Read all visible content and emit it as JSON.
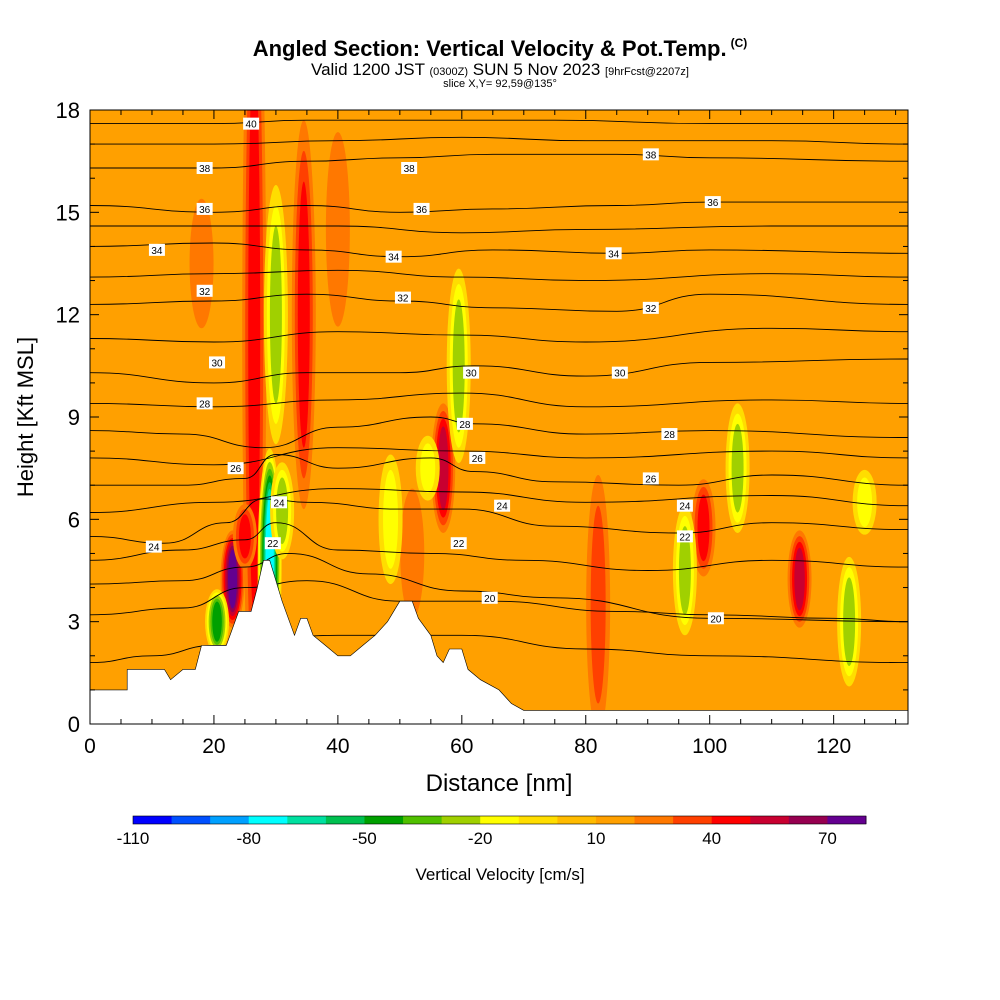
{
  "header": {
    "title": "Angled Section: Vertical Velocity & Pot.Temp.",
    "title_units": "(C)",
    "valid_prefix": "Valid 1200 JST",
    "valid_zulu": "(0300Z)",
    "valid_date": "SUN 5 Nov 2023",
    "forecast": "[9hrFcst@2207z]",
    "slice": "slice X,Y= 92,59@135°"
  },
  "chart_data": {
    "type": "heatmap",
    "xlabel": "Distance [nm]",
    "ylabel": "Height [Kft MSL]",
    "xlim": [
      0,
      132
    ],
    "ylim": [
      0,
      18
    ],
    "x_ticks": [
      0,
      20,
      40,
      60,
      80,
      100,
      120
    ],
    "y_ticks": [
      0,
      3,
      6,
      9,
      12,
      15,
      18
    ],
    "colorbar": {
      "label": "Vertical Velocity [cm/s]",
      "min": -110,
      "max": 80,
      "step": 10,
      "tick_values": [
        -110,
        -80,
        -50,
        -20,
        10,
        40,
        70
      ],
      "colors": [
        "#0000ff",
        "#0050ff",
        "#00a0ff",
        "#00ffff",
        "#00e0a0",
        "#00c050",
        "#00a000",
        "#50c000",
        "#a0d000",
        "#ffff00",
        "#ffdd00",
        "#ffbb00",
        "#ffa000",
        "#ff7800",
        "#ff4000",
        "#ff0000",
        "#c80030",
        "#960050",
        "#640090"
      ]
    },
    "background_w": 10,
    "updrafts": [
      {
        "x": 26.5,
        "y0": 5.0,
        "y1": 18.0,
        "w": 48
      },
      {
        "x": 34.5,
        "y0": 9.0,
        "y1": 15.0,
        "w": 46
      },
      {
        "x": 57.0,
        "y0": 6.5,
        "y1": 8.5,
        "w": 50
      },
      {
        "x": 99.0,
        "y0": 5.0,
        "y1": 6.5,
        "w": 45
      },
      {
        "x": 114.5,
        "y0": 3.5,
        "y1": 5.0,
        "w": 52
      },
      {
        "x": 82.0,
        "y0": 1.5,
        "y1": 5.5,
        "w": 34
      },
      {
        "x": 23.0,
        "y0": 3.5,
        "y1": 5.0,
        "w": 72
      },
      {
        "x": 25.0,
        "y0": 5.0,
        "y1": 6.0,
        "w": 48
      },
      {
        "x": 52.0,
        "y0": 4.0,
        "y1": 6.0,
        "w": 28
      },
      {
        "x": 40.0,
        "y0": 13.0,
        "y1": 16.0,
        "w": 28
      },
      {
        "x": 18.0,
        "y0": 12.5,
        "y1": 14.5,
        "w": 22
      }
    ],
    "downdrafts": [
      {
        "x": 30.0,
        "y0": 10.0,
        "y1": 14.0,
        "w": -35
      },
      {
        "x": 59.5,
        "y0": 9.0,
        "y1": 12.0,
        "w": -32
      },
      {
        "x": 104.5,
        "y0": 6.5,
        "y1": 8.5,
        "w": -32
      },
      {
        "x": 54.5,
        "y0": 7.0,
        "y1": 8.0,
        "w": -28
      },
      {
        "x": 48.5,
        "y0": 5.0,
        "y1": 7.0,
        "w": -28
      },
      {
        "x": 96.0,
        "y0": 3.5,
        "y1": 5.5,
        "w": -30
      },
      {
        "x": 122.5,
        "y0": 2.0,
        "y1": 4.0,
        "w": -30
      },
      {
        "x": 125.0,
        "y0": 6.0,
        "y1": 7.0,
        "w": -25
      },
      {
        "x": 20.5,
        "y0": 2.5,
        "y1": 3.5,
        "w": -55
      },
      {
        "x": 29.0,
        "y0": 3.0,
        "y1": 6.5,
        "w": -85
      },
      {
        "x": 31.0,
        "y0": 5.5,
        "y1": 7.0,
        "w": -35
      }
    ],
    "terrain": [
      [
        0,
        1.0
      ],
      [
        5,
        1.0
      ],
      [
        6,
        1.0
      ],
      [
        6,
        1.6
      ],
      [
        12,
        1.6
      ],
      [
        13,
        1.3
      ],
      [
        15,
        1.6
      ],
      [
        17,
        1.6
      ],
      [
        18,
        2.3
      ],
      [
        22,
        2.3
      ],
      [
        23,
        2.8
      ],
      [
        24,
        3.3
      ],
      [
        26,
        3.3
      ],
      [
        27,
        4.0
      ],
      [
        28,
        4.8
      ],
      [
        29,
        4.8
      ],
      [
        30,
        4.2
      ],
      [
        31,
        3.6
      ],
      [
        32,
        3.1
      ],
      [
        33,
        2.6
      ],
      [
        34,
        3.1
      ],
      [
        35,
        3.1
      ],
      [
        36,
        2.6
      ],
      [
        38,
        2.3
      ],
      [
        40,
        2.0
      ],
      [
        42,
        2.0
      ],
      [
        44,
        2.3
      ],
      [
        46,
        2.6
      ],
      [
        48,
        3.0
      ],
      [
        50,
        3.6
      ],
      [
        52,
        3.6
      ],
      [
        53,
        3.1
      ],
      [
        55,
        2.6
      ],
      [
        56,
        2.0
      ],
      [
        57,
        1.8
      ],
      [
        58,
        2.2
      ],
      [
        60,
        2.2
      ],
      [
        61,
        1.6
      ],
      [
        63,
        1.3
      ],
      [
        66,
        1.0
      ],
      [
        68,
        0.6
      ],
      [
        70,
        0.4
      ],
      [
        132,
        0.4
      ]
    ],
    "isentropes": [
      {
        "level": 18,
        "points": [
          [
            0,
            1.8
          ],
          [
            10,
            2.0
          ],
          [
            20,
            2.3
          ],
          [
            40,
            2.6
          ],
          [
            60,
            2.6
          ],
          [
            80,
            2.2
          ],
          [
            100,
            2.0
          ],
          [
            132,
            1.8
          ]
        ]
      },
      {
        "level": 20,
        "points": [
          [
            0,
            3.2
          ],
          [
            15,
            3.4
          ],
          [
            25,
            4.0
          ],
          [
            35,
            4.2
          ],
          [
            50,
            3.6
          ],
          [
            65,
            3.6
          ],
          [
            85,
            3.3
          ],
          [
            100,
            3.2
          ],
          [
            120,
            3.1
          ],
          [
            132,
            3.0
          ]
        ]
      },
      {
        "level": 20,
        "points": [
          [
            0,
            4.1
          ],
          [
            15,
            4.2
          ],
          [
            25,
            4.6
          ],
          [
            32,
            5.0
          ],
          [
            45,
            4.4
          ],
          [
            60,
            3.9
          ],
          [
            75,
            3.7
          ],
          [
            100,
            3.1
          ],
          [
            132,
            3.0
          ]
        ]
      },
      {
        "level": 22,
        "points": [
          [
            0,
            4.8
          ],
          [
            15,
            5.1
          ],
          [
            25,
            5.4
          ],
          [
            30,
            5.9
          ],
          [
            40,
            5.1
          ],
          [
            55,
            5.0
          ],
          [
            70,
            4.8
          ],
          [
            90,
            4.5
          ],
          [
            110,
            4.8
          ],
          [
            132,
            4.6
          ]
        ]
      },
      {
        "level": 24,
        "points": [
          [
            0,
            5.5
          ],
          [
            12,
            5.3
          ],
          [
            22,
            5.9
          ],
          [
            28,
            6.6
          ],
          [
            35,
            6.5
          ],
          [
            50,
            6.3
          ],
          [
            60,
            6.3
          ],
          [
            75,
            5.8
          ],
          [
            95,
            5.6
          ],
          [
            110,
            5.9
          ],
          [
            132,
            5.7
          ]
        ]
      },
      {
        "level": 26,
        "points": [
          [
            0,
            7.0
          ],
          [
            15,
            7.0
          ],
          [
            25,
            7.2
          ],
          [
            30,
            7.9
          ],
          [
            40,
            7.5
          ],
          [
            55,
            7.8
          ],
          [
            62,
            7.4
          ],
          [
            75,
            7.1
          ],
          [
            95,
            7.0
          ],
          [
            110,
            7.3
          ],
          [
            132,
            7.0
          ]
        ]
      },
      {
        "level": 28,
        "points": [
          [
            0,
            8.6
          ],
          [
            15,
            8.5
          ],
          [
            28,
            8.1
          ],
          [
            40,
            8.7
          ],
          [
            55,
            9.0
          ],
          [
            62,
            8.8
          ],
          [
            80,
            8.5
          ],
          [
            100,
            8.6
          ],
          [
            132,
            8.4
          ]
        ]
      },
      {
        "level": 30,
        "points": [
          [
            0,
            10.3
          ],
          [
            20,
            10.0
          ],
          [
            35,
            10.3
          ],
          [
            50,
            10.3
          ],
          [
            62,
            10.5
          ],
          [
            80,
            10.2
          ],
          [
            100,
            10.6
          ],
          [
            132,
            10.7
          ]
        ]
      },
      {
        "level": 32,
        "points": [
          [
            0,
            12.3
          ],
          [
            20,
            12.4
          ],
          [
            35,
            12.6
          ],
          [
            50,
            12.4
          ],
          [
            65,
            12.2
          ],
          [
            85,
            12.1
          ],
          [
            100,
            12.6
          ],
          [
            132,
            12.3
          ]
        ]
      },
      {
        "level": 34,
        "points": [
          [
            0,
            14.0
          ],
          [
            20,
            14.1
          ],
          [
            35,
            13.9
          ],
          [
            50,
            13.7
          ],
          [
            65,
            13.9
          ],
          [
            85,
            13.8
          ],
          [
            100,
            13.9
          ],
          [
            132,
            13.8
          ]
        ]
      },
      {
        "level": 36,
        "points": [
          [
            0,
            15.2
          ],
          [
            20,
            15.0
          ],
          [
            35,
            15.2
          ],
          [
            50,
            15.0
          ],
          [
            65,
            15.1
          ],
          [
            85,
            15.2
          ],
          [
            100,
            15.3
          ],
          [
            132,
            15.3
          ]
        ]
      },
      {
        "level": 38,
        "points": [
          [
            0,
            16.3
          ],
          [
            20,
            16.3
          ],
          [
            35,
            16.5
          ],
          [
            50,
            16.6
          ],
          [
            65,
            16.7
          ],
          [
            85,
            16.7
          ],
          [
            100,
            16.6
          ],
          [
            132,
            16.5
          ]
        ]
      },
      {
        "level": 40,
        "points": [
          [
            0,
            17.6
          ],
          [
            20,
            17.6
          ],
          [
            35,
            17.7
          ],
          [
            55,
            17.7
          ],
          [
            75,
            17.7
          ],
          [
            100,
            17.6
          ],
          [
            132,
            17.6
          ]
        ]
      }
    ],
    "extra_isentropes": [
      [
        [
          0,
          6.2
        ],
        [
          20,
          6.5
        ],
        [
          40,
          6.9
        ],
        [
          60,
          6.8
        ],
        [
          80,
          6.5
        ],
        [
          110,
          6.7
        ],
        [
          132,
          6.4
        ]
      ],
      [
        [
          0,
          7.8
        ],
        [
          20,
          7.6
        ],
        [
          40,
          8.1
        ],
        [
          60,
          8.0
        ],
        [
          80,
          7.8
        ],
        [
          110,
          8.0
        ],
        [
          132,
          7.8
        ]
      ],
      [
        [
          0,
          9.4
        ],
        [
          20,
          9.3
        ],
        [
          40,
          9.5
        ],
        [
          60,
          9.7
        ],
        [
          80,
          9.3
        ],
        [
          110,
          9.5
        ],
        [
          132,
          9.4
        ]
      ],
      [
        [
          0,
          11.3
        ],
        [
          20,
          11.2
        ],
        [
          40,
          11.5
        ],
        [
          60,
          11.4
        ],
        [
          80,
          11.2
        ],
        [
          110,
          11.6
        ],
        [
          132,
          11.5
        ]
      ],
      [
        [
          0,
          13.1
        ],
        [
          20,
          13.2
        ],
        [
          40,
          13.3
        ],
        [
          60,
          13.1
        ],
        [
          80,
          13.0
        ],
        [
          110,
          13.2
        ],
        [
          132,
          13.1
        ]
      ],
      [
        [
          0,
          14.6
        ],
        [
          20,
          14.6
        ],
        [
          40,
          14.6
        ],
        [
          60,
          14.4
        ],
        [
          80,
          14.5
        ],
        [
          110,
          14.6
        ],
        [
          132,
          14.6
        ]
      ],
      [
        [
          0,
          17.0
        ],
        [
          20,
          17.0
        ],
        [
          40,
          17.1
        ],
        [
          60,
          17.2
        ],
        [
          80,
          17.1
        ],
        [
          110,
          17.1
        ],
        [
          132,
          17.0
        ]
      ]
    ],
    "contour_labels": [
      {
        "text": "40",
        "x": 26.0,
        "y": 17.6
      },
      {
        "text": "38",
        "x": 18.5,
        "y": 16.3
      },
      {
        "text": "38",
        "x": 51.5,
        "y": 16.3
      },
      {
        "text": "38",
        "x": 90.5,
        "y": 16.7
      },
      {
        "text": "36",
        "x": 18.5,
        "y": 15.1
      },
      {
        "text": "36",
        "x": 53.5,
        "y": 15.1
      },
      {
        "text": "36",
        "x": 100.5,
        "y": 15.3
      },
      {
        "text": "34",
        "x": 10.8,
        "y": 13.9
      },
      {
        "text": "34",
        "x": 49.0,
        "y": 13.7
      },
      {
        "text": "34",
        "x": 84.5,
        "y": 13.8
      },
      {
        "text": "32",
        "x": 18.5,
        "y": 12.7
      },
      {
        "text": "32",
        "x": 50.5,
        "y": 12.5
      },
      {
        "text": "32",
        "x": 90.5,
        "y": 12.2
      },
      {
        "text": "30",
        "x": 20.5,
        "y": 10.6
      },
      {
        "text": "30",
        "x": 61.5,
        "y": 10.3
      },
      {
        "text": "30",
        "x": 85.5,
        "y": 10.3
      },
      {
        "text": "28",
        "x": 18.5,
        "y": 9.4
      },
      {
        "text": "28",
        "x": 60.5,
        "y": 8.8
      },
      {
        "text": "28",
        "x": 93.5,
        "y": 8.5
      },
      {
        "text": "26",
        "x": 23.5,
        "y": 7.5
      },
      {
        "text": "26",
        "x": 62.5,
        "y": 7.8
      },
      {
        "text": "26",
        "x": 90.5,
        "y": 7.2
      },
      {
        "text": "24",
        "x": 10.3,
        "y": 5.2
      },
      {
        "text": "24",
        "x": 30.5,
        "y": 6.5
      },
      {
        "text": "24",
        "x": 66.5,
        "y": 6.4
      },
      {
        "text": "24",
        "x": 96.0,
        "y": 6.4
      },
      {
        "text": "22",
        "x": 29.5,
        "y": 5.3
      },
      {
        "text": "22",
        "x": 59.5,
        "y": 5.3
      },
      {
        "text": "22",
        "x": 96.0,
        "y": 5.5
      },
      {
        "text": "20",
        "x": 64.5,
        "y": 3.7
      },
      {
        "text": "20",
        "x": 101.0,
        "y": 3.1
      }
    ]
  }
}
